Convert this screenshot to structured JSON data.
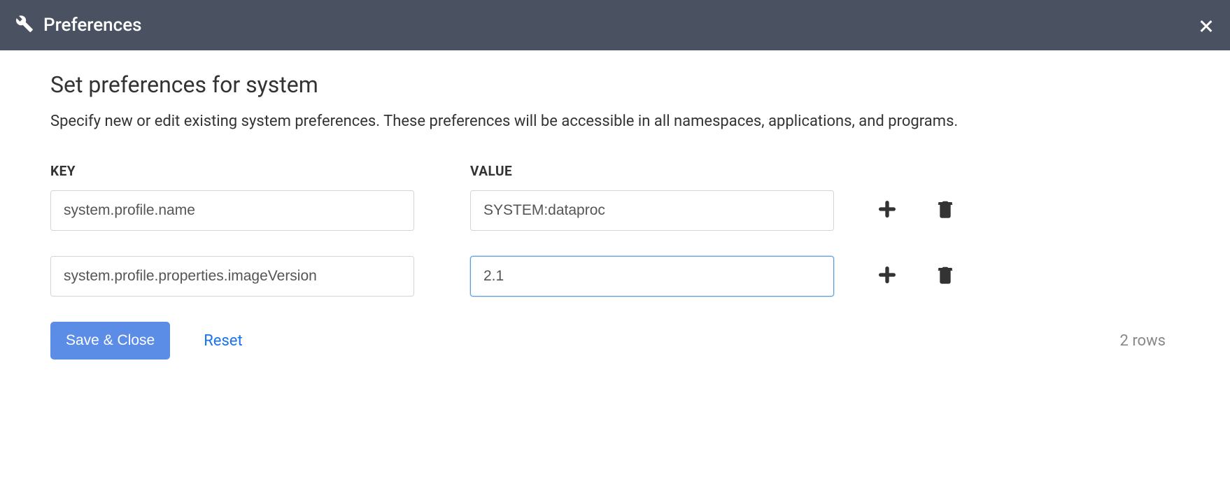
{
  "header": {
    "title": "Preferences"
  },
  "page": {
    "heading": "Set preferences for system",
    "description": "Specify new or edit existing system preferences. These preferences will be accessible in all namespaces, applications, and programs."
  },
  "columns": {
    "key": "KEY",
    "value": "VALUE"
  },
  "rows": [
    {
      "key": "system.profile.name",
      "value": "SYSTEM:dataproc",
      "focused": false
    },
    {
      "key": "system.profile.properties.imageVersion",
      "value": "2.1",
      "focused": true
    }
  ],
  "footer": {
    "save": "Save & Close",
    "reset": "Reset",
    "row_count": "2 rows"
  },
  "colors": {
    "header_bg": "#4a5161",
    "primary_btn": "#5c8de6",
    "link": "#1a73e8",
    "border": "#d4d4d4",
    "focus_border": "#5a9ee0",
    "muted_text": "#888888"
  }
}
